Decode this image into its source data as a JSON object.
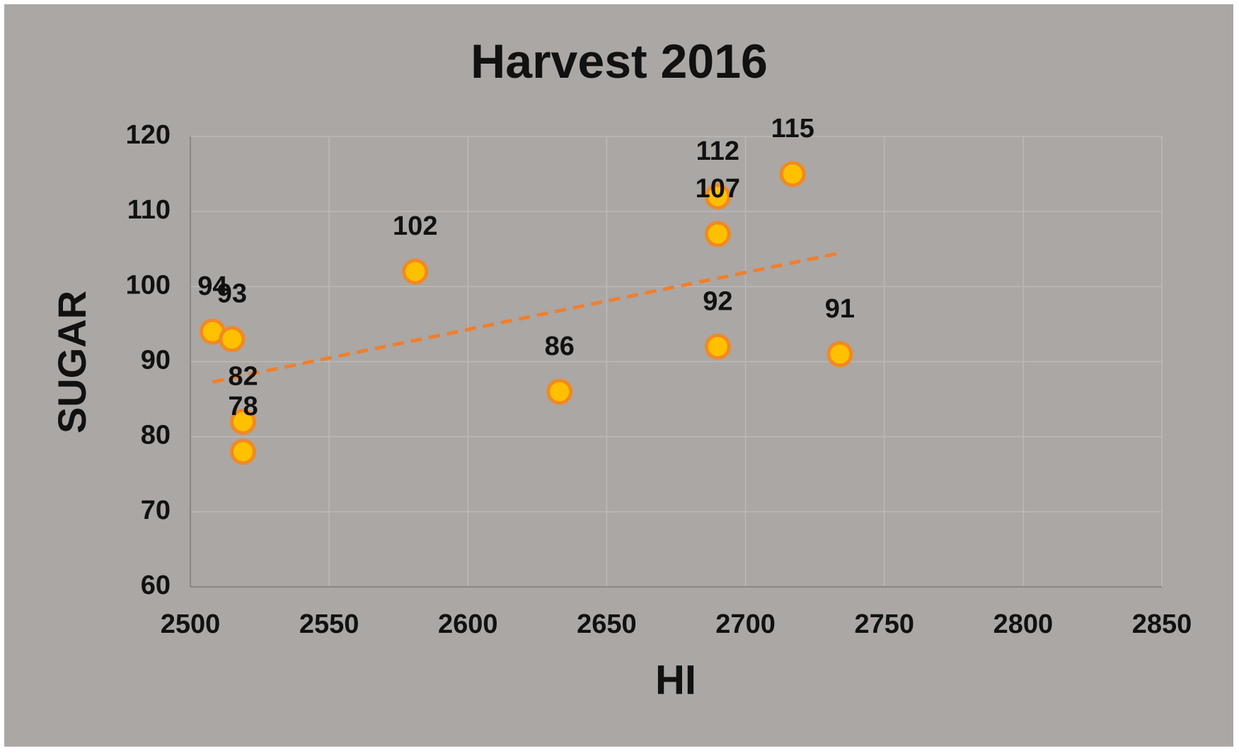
{
  "chart_data": {
    "type": "scatter",
    "title": "Harvest 2016",
    "x_label": "HI",
    "y_label": "SUGAR",
    "x": [
      2508,
      2515,
      2519,
      2519,
      2581,
      2633,
      2690,
      2690,
      2690,
      2717,
      2734
    ],
    "values": [
      94,
      93,
      82,
      78,
      102,
      86,
      112,
      107,
      92,
      115,
      91
    ],
    "color": "#ffc000",
    "edge_color": "#f08a24",
    "trendline": "linear",
    "trendline_color": "#f07f2c",
    "xlim": [
      2500,
      2850
    ],
    "xticks": [
      2500,
      2550,
      2600,
      2650,
      2700,
      2750,
      2800,
      2850
    ],
    "ylim": [
      60,
      120
    ],
    "yticks": [
      60,
      70,
      80,
      90,
      100,
      110,
      120
    ],
    "grid": true,
    "data_labels": true
  }
}
